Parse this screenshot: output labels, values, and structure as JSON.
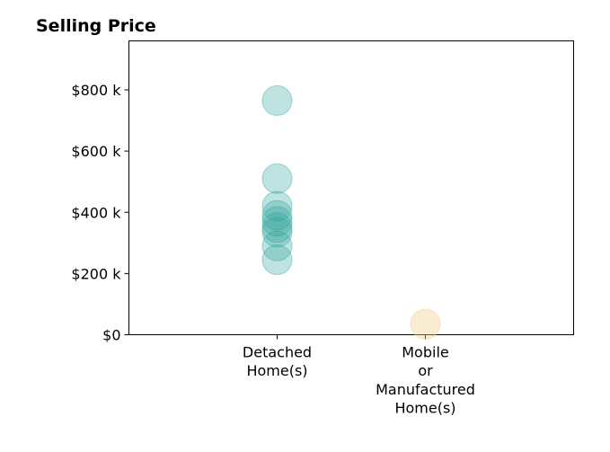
{
  "chart_data": {
    "type": "scatter",
    "title": "Selling Price",
    "xlabel": "",
    "ylabel": "",
    "categories": [
      "Detached\nHome(s)",
      "Mobile\nor\nManufactured\nHome(s)"
    ],
    "y_ticks": [
      {
        "value": 0,
        "label": "$0"
      },
      {
        "value": 200000,
        "label": "$200 k"
      },
      {
        "value": 400000,
        "label": "$400 k"
      },
      {
        "value": 600000,
        "label": "$600 k"
      },
      {
        "value": 800000,
        "label": "$800 k"
      }
    ],
    "ylim": [
      0,
      960000
    ],
    "xlim": [
      0,
      3
    ],
    "grid": false,
    "series": [
      {
        "category_index": 0,
        "color": "#2aa198",
        "opacity": 0.3,
        "values": [
          765000,
          510000,
          420000,
          390000,
          370000,
          350000,
          335000,
          290000,
          245000
        ]
      },
      {
        "category_index": 1,
        "color": "#eecf8f",
        "opacity": 0.4,
        "values": [
          35000
        ]
      }
    ]
  }
}
